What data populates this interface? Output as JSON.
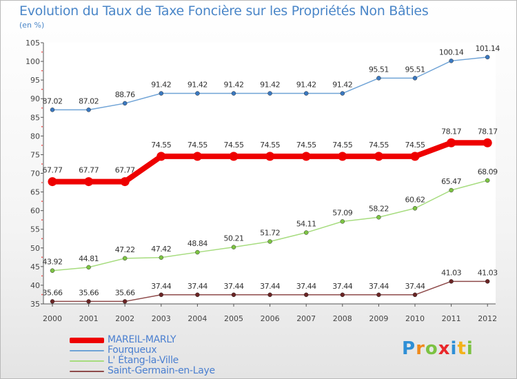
{
  "header": {
    "title": "Evolution du Taux de Taxe Foncière sur les Propriétés Non Bâties",
    "unit": "(en %)"
  },
  "brand": {
    "letters": [
      "P",
      "r",
      "o",
      "x",
      "i",
      "t",
      "i"
    ]
  },
  "chart_data": {
    "type": "line",
    "title": "Evolution du Taux de Taxe Foncière sur les Propriétés Non Bâties",
    "ylabel": "(en %)",
    "xlabel": "",
    "ylim": [
      35,
      105
    ],
    "yticks": [
      35,
      40,
      45,
      50,
      55,
      60,
      65,
      70,
      75,
      80,
      85,
      90,
      95,
      100,
      105
    ],
    "grid": false,
    "legend_position": "bottom-left",
    "categories": [
      "2000",
      "2001",
      "2002",
      "2003",
      "2004",
      "2005",
      "2006",
      "2007",
      "2008",
      "2009",
      "2010",
      "2011",
      "2012"
    ],
    "series": [
      {
        "name": "MAREIL-MARLY",
        "color": "#ee0000",
        "bold": true,
        "values": [
          67.77,
          67.77,
          67.77,
          74.55,
          74.55,
          74.55,
          74.55,
          74.55,
          74.55,
          74.55,
          74.55,
          78.17,
          78.17
        ],
        "labels": [
          "67.77",
          "67.77",
          "67.77",
          "74.55",
          "74.55",
          "74.55",
          "74.55",
          "74.55",
          "74.55",
          "74.55",
          "74.55",
          "78.17",
          "78.17"
        ]
      },
      {
        "name": "Fourqueux",
        "color": "#6fa3d6",
        "marker": "#3a78c0",
        "bold": false,
        "values": [
          87.02,
          87.02,
          88.76,
          91.42,
          91.42,
          91.42,
          91.42,
          91.42,
          91.42,
          95.51,
          95.51,
          100.14,
          101.14
        ],
        "labels": [
          "87.02",
          "87.02",
          "88.76",
          "91.42",
          "91.42",
          "91.42",
          "91.42",
          "91.42",
          "91.42",
          "95.51",
          "95.51",
          "100.14",
          "101.14"
        ]
      },
      {
        "name": "L' Étang-la-Ville",
        "color": "#a6dc7e",
        "marker": "#7dc443",
        "bold": false,
        "values": [
          43.92,
          44.81,
          47.22,
          47.42,
          48.84,
          50.21,
          51.72,
          54.11,
          57.09,
          58.22,
          60.62,
          65.47,
          68.09
        ],
        "labels": [
          "43.92",
          "44.81",
          "47.22",
          "47.42",
          "48.84",
          "50.21",
          "51.72",
          "54.11",
          "57.09",
          "58.22",
          "60.62",
          "65.47",
          "68.09"
        ]
      },
      {
        "name": "Saint-Germain-en-Laye",
        "color": "#8e4a4a",
        "marker": "#6a2424",
        "bold": false,
        "values": [
          35.66,
          35.66,
          35.66,
          37.44,
          37.44,
          37.44,
          37.44,
          37.44,
          37.44,
          37.44,
          37.44,
          41.03,
          41.03
        ],
        "labels": [
          "35.66",
          "35.66",
          "35.66",
          "37.44",
          "37.44",
          "37.44",
          "37.44",
          "37.44",
          "37.44",
          "37.44",
          "37.44",
          "41.03",
          "41.03"
        ]
      }
    ]
  }
}
